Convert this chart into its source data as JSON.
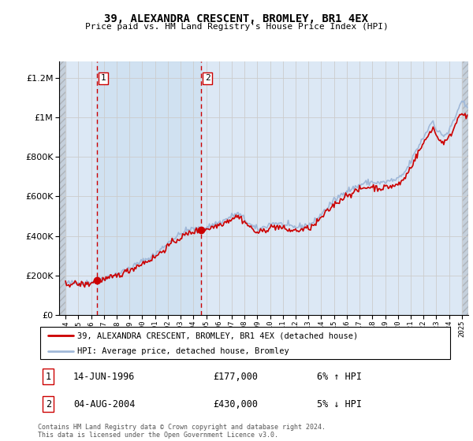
{
  "title": "39, ALEXANDRA CRESCENT, BROMLEY, BR1 4EX",
  "subtitle": "Price paid vs. HM Land Registry's House Price Index (HPI)",
  "legend_line1": "39, ALEXANDRA CRESCENT, BROMLEY, BR1 4EX (detached house)",
  "legend_line2": "HPI: Average price, detached house, Bromley",
  "transaction1": {
    "label": "1",
    "date": "14-JUN-1996",
    "price": 177000,
    "hpi_note": "6% ↑ HPI"
  },
  "transaction2": {
    "label": "2",
    "date": "04-AUG-2004",
    "price": 430000,
    "hpi_note": "5% ↓ HPI"
  },
  "footer": "Contains HM Land Registry data © Crown copyright and database right 2024.\nThis data is licensed under the Open Government Licence v3.0.",
  "hpi_color": "#a0b8d8",
  "price_color": "#cc0000",
  "grid_color": "#cccccc",
  "plot_bg_color": "#dce8f5",
  "hatch_bg_color": "#c5d0dc",
  "between_shading": "#dce8f5",
  "ylim": [
    0,
    1280000
  ],
  "xlim_start": 1993.5,
  "xlim_end": 2025.5,
  "transaction1_year": 1996.45,
  "transaction2_year": 2004.6,
  "yticks": [
    0,
    200000,
    400000,
    600000,
    800000,
    1000000,
    1200000
  ]
}
